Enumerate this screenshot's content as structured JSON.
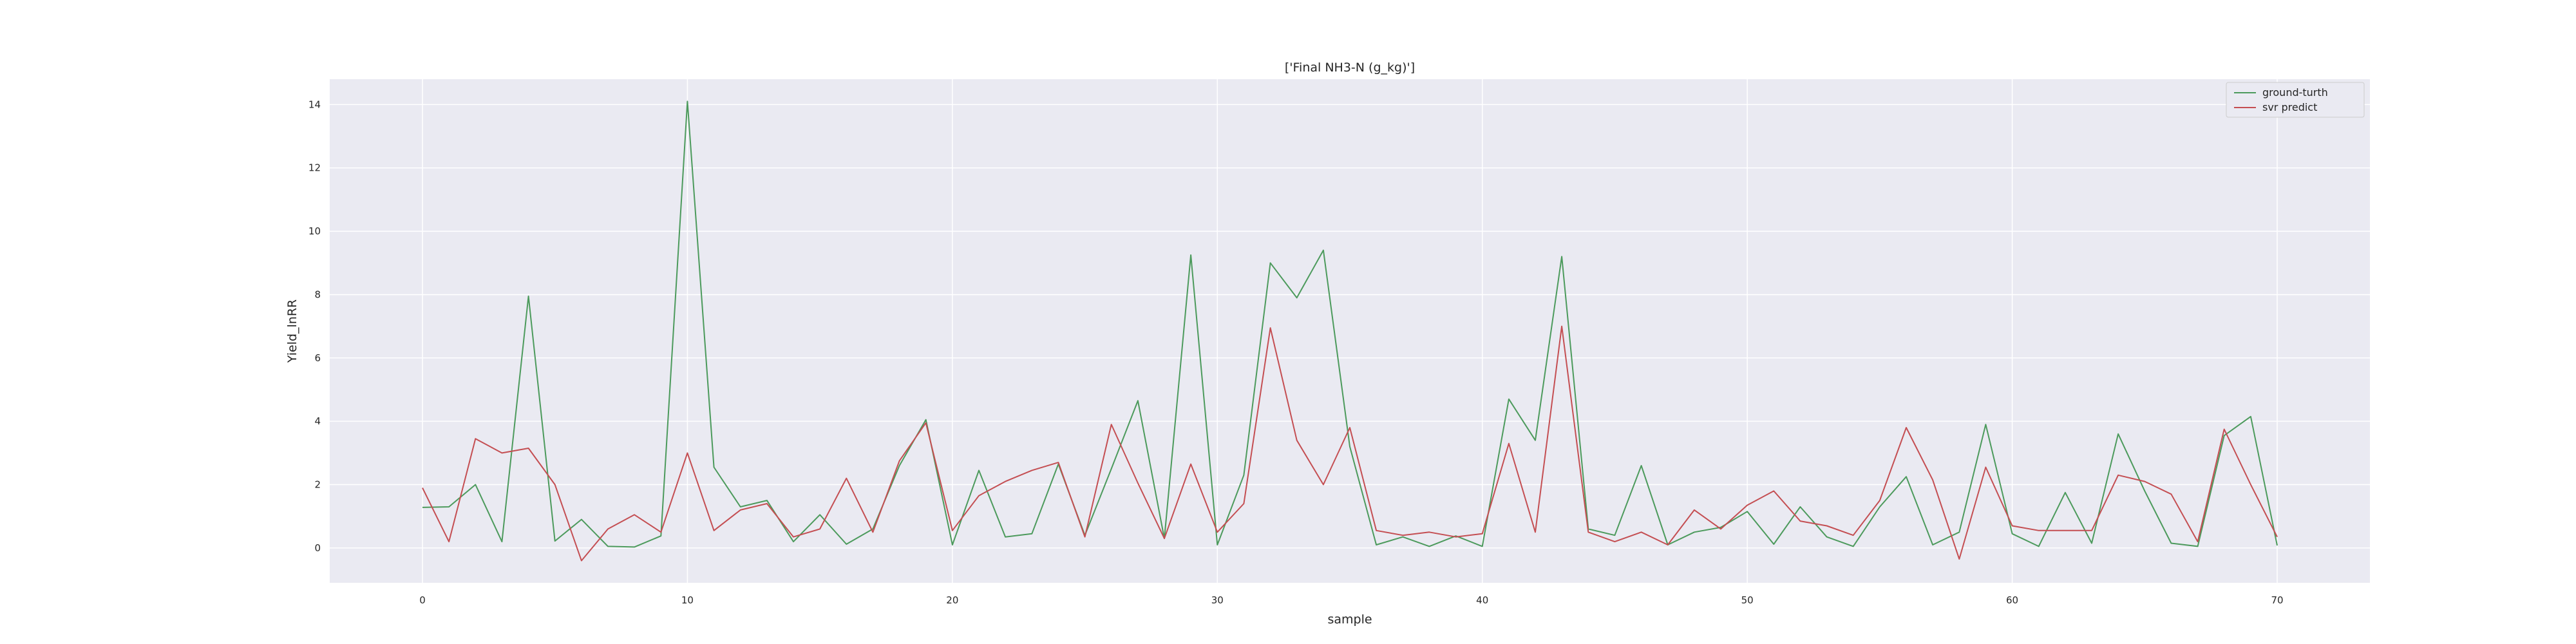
{
  "chart_data": {
    "type": "line",
    "title": "['Final NH3-N (g_kg)']",
    "xlabel": "sample",
    "ylabel": "Yield_lnRR",
    "xlim": [
      -3.5,
      73.5
    ],
    "ylim": [
      -1.1,
      14.8
    ],
    "xticks": [
      0,
      10,
      20,
      30,
      40,
      50,
      60,
      70
    ],
    "yticks": [
      0,
      2,
      4,
      6,
      8,
      10,
      12,
      14
    ],
    "grid": true,
    "legend_position": "top-right",
    "x": [
      0,
      1,
      2,
      3,
      4,
      5,
      6,
      7,
      8,
      9,
      10,
      11,
      12,
      13,
      14,
      15,
      16,
      17,
      18,
      19,
      20,
      21,
      22,
      23,
      24,
      25,
      26,
      27,
      28,
      29,
      30,
      31,
      32,
      33,
      34,
      35,
      36,
      37,
      38,
      39,
      40,
      41,
      42,
      43,
      44,
      45,
      46,
      47,
      48,
      49,
      50,
      51,
      52,
      53,
      54,
      55,
      56,
      57,
      58,
      59,
      60,
      61,
      62,
      63,
      64,
      65,
      66,
      67,
      68,
      69,
      70
    ],
    "series": [
      {
        "name": "ground-turth",
        "color": "#4c9a5c",
        "values": [
          1.28,
          1.3,
          2.0,
          0.2,
          7.95,
          0.22,
          0.9,
          0.05,
          0.03,
          0.38,
          14.1,
          2.55,
          1.3,
          1.5,
          0.2,
          1.05,
          0.12,
          0.6,
          2.6,
          4.05,
          0.1,
          2.45,
          0.35,
          0.45,
          2.65,
          0.4,
          2.5,
          4.65,
          0.3,
          9.25,
          0.1,
          2.3,
          9.0,
          7.9,
          9.4,
          3.2,
          0.1,
          0.35,
          0.05,
          0.38,
          0.05,
          4.7,
          3.4,
          9.2,
          0.6,
          0.4,
          2.6,
          0.1,
          0.5,
          0.65,
          1.15,
          0.12,
          1.3,
          0.35,
          0.05,
          1.3,
          2.25,
          0.1,
          0.5,
          3.9,
          0.45,
          0.05,
          1.75,
          0.15,
          3.6,
          1.8,
          0.15,
          0.05,
          3.55,
          4.15,
          0.08
        ]
      },
      {
        "name": "svr predict",
        "color": "#c44e52",
        "values": [
          1.9,
          0.2,
          3.45,
          3.0,
          3.15,
          2.0,
          -0.4,
          0.6,
          1.05,
          0.5,
          3.0,
          0.55,
          1.2,
          1.4,
          0.35,
          0.6,
          2.2,
          0.5,
          2.75,
          3.95,
          0.55,
          1.65,
          2.1,
          2.45,
          2.7,
          0.35,
          3.9,
          2.05,
          0.3,
          2.65,
          0.5,
          1.4,
          6.95,
          3.4,
          2.0,
          3.8,
          0.55,
          0.4,
          0.5,
          0.35,
          0.45,
          3.3,
          0.5,
          7.0,
          0.5,
          0.2,
          0.5,
          0.1,
          1.2,
          0.6,
          1.35,
          1.8,
          0.85,
          0.7,
          0.4,
          1.5,
          3.8,
          2.15,
          -0.35,
          2.55,
          0.7,
          0.55,
          0.55,
          0.55,
          2.3,
          2.1,
          1.7,
          0.2,
          3.75,
          2.0,
          0.35
        ]
      }
    ]
  }
}
